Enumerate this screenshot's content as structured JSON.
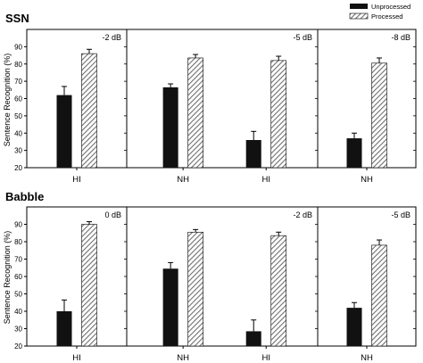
{
  "chart_data": {
    "type": "bar",
    "ylabel": "Sentence Recognition (%)",
    "ylim": [
      20,
      100
    ],
    "yticks": [
      20,
      30,
      40,
      50,
      60,
      70,
      80,
      90
    ],
    "legend": {
      "placement": "top-right",
      "entries": [
        "Unprocessed",
        "Processed"
      ]
    },
    "colors": {
      "Unprocessed": "#111111",
      "Processed": "#c8c8c8"
    },
    "groups": [
      {
        "title": "SSN",
        "panels": [
          {
            "condition": "-2 dB",
            "categories": [
              "HI"
            ],
            "series": [
              {
                "name": "Unprocessed",
                "values": [
                  62
                ],
                "errors": [
                  5
                ]
              },
              {
                "name": "Processed",
                "values": [
                  86
                ],
                "errors": [
                  2.5
                ]
              }
            ]
          },
          {
            "condition": "-5 dB",
            "categories": [
              "NH",
              "HI"
            ],
            "series": [
              {
                "name": "Unprocessed",
                "values": [
                  66.5,
                  36
                ],
                "errors": [
                  2,
                  5
                ]
              },
              {
                "name": "Processed",
                "values": [
                  83.5,
                  82
                ],
                "errors": [
                  2,
                  2.5
                ]
              }
            ]
          },
          {
            "condition": "-8 dB",
            "categories": [
              "NH"
            ],
            "series": [
              {
                "name": "Unprocessed",
                "values": [
                  37
                ],
                "errors": [
                  3
                ]
              },
              {
                "name": "Processed",
                "values": [
                  80.5
                ],
                "errors": [
                  3
                ]
              }
            ]
          }
        ]
      },
      {
        "title": "Babble",
        "panels": [
          {
            "condition": "0 dB",
            "categories": [
              "HI"
            ],
            "series": [
              {
                "name": "Unprocessed",
                "values": [
                  40
                ],
                "errors": [
                  6.5
                ]
              },
              {
                "name": "Processed",
                "values": [
                  90
                ],
                "errors": [
                  1.5
                ]
              }
            ]
          },
          {
            "condition": "-2 dB",
            "categories": [
              "NH",
              "HI"
            ],
            "series": [
              {
                "name": "Unprocessed",
                "values": [
                  64.5,
                  28.5
                ],
                "errors": [
                  3.5,
                  6.5
                ]
              },
              {
                "name": "Processed",
                "values": [
                  85.5,
                  83.5
                ],
                "errors": [
                  1.5,
                  2
                ]
              }
            ]
          },
          {
            "condition": "-5 dB",
            "categories": [
              "NH"
            ],
            "series": [
              {
                "name": "Unprocessed",
                "values": [
                  42
                ],
                "errors": [
                  3
                ]
              },
              {
                "name": "Processed",
                "values": [
                  78
                ],
                "errors": [
                  3
                ]
              }
            ]
          }
        ]
      }
    ]
  }
}
